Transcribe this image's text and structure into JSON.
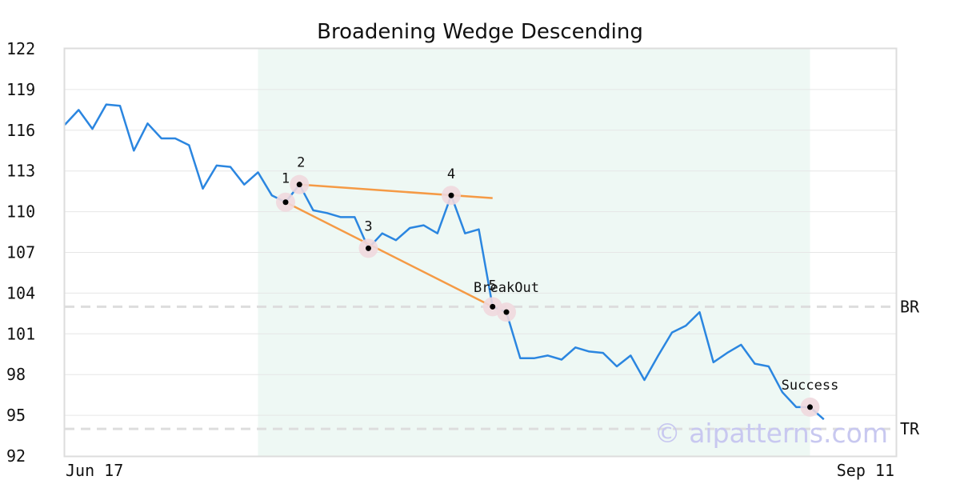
{
  "chart_data": {
    "type": "line",
    "title": "Broadening Wedge Descending",
    "xlabel": "",
    "ylabel": "",
    "ylim": [
      92,
      122
    ],
    "yticks": [
      "122",
      "119",
      "116",
      "113",
      "110",
      "107",
      "104",
      "101",
      "98",
      "95",
      "92"
    ],
    "xtick_labels": [
      "Jun 17",
      "Sep 11"
    ],
    "grid": "horizontal",
    "colors": {
      "price": "#2b86e0",
      "trendline": "#f59a45",
      "pattern_zone": "#eef8f4",
      "marker_halo": "#efd8de",
      "level_line": "#dddddd",
      "grid": "#e6e6e6",
      "watermark": "#c8c8f0"
    },
    "series": [
      {
        "values": [
          116.4,
          117.5,
          116.1,
          117.9,
          117.8,
          114.5,
          116.5,
          115.4,
          115.4,
          114.9,
          111.7,
          113.4,
          113.3,
          112.0,
          112.9,
          111.2,
          110.7,
          112.0,
          110.1,
          109.9,
          109.6,
          109.6,
          107.3,
          108.4,
          107.9,
          108.8,
          109.0,
          108.4,
          111.2,
          108.4,
          108.7,
          103.0,
          102.6,
          99.2,
          99.2,
          99.4,
          99.1,
          100.0,
          99.7,
          99.6,
          98.6,
          99.4,
          97.6,
          99.4,
          101.1,
          101.6,
          102.6,
          98.9,
          99.6,
          100.2,
          98.8,
          98.6,
          96.7,
          95.6,
          95.6,
          94.7
        ]
      }
    ],
    "pattern_zone": {
      "start_index": 14,
      "end_index": 54
    },
    "trendlines": [
      {
        "from": [
          17,
          112.0
        ],
        "to": [
          31,
          111.0
        ]
      },
      {
        "from": [
          16,
          110.7
        ],
        "to": [
          31,
          103.0
        ]
      }
    ],
    "points": [
      {
        "label": "1",
        "index": 16,
        "value": 110.7
      },
      {
        "label": "2",
        "index": 17,
        "value": 112.0
      },
      {
        "label": "3",
        "index": 22,
        "value": 107.3
      },
      {
        "label": "4",
        "index": 28,
        "value": 111.2
      },
      {
        "label": "5",
        "index": 31,
        "value": 103.0
      },
      {
        "label": "BreakOut",
        "index": 32,
        "value": 102.6
      },
      {
        "label": "Success",
        "index": 54,
        "value": 95.6
      }
    ],
    "levels": [
      {
        "label": "BR",
        "value": 103.0
      },
      {
        "label": "TR",
        "value": 94.0
      }
    ],
    "watermark": "© aipatterns.com"
  }
}
